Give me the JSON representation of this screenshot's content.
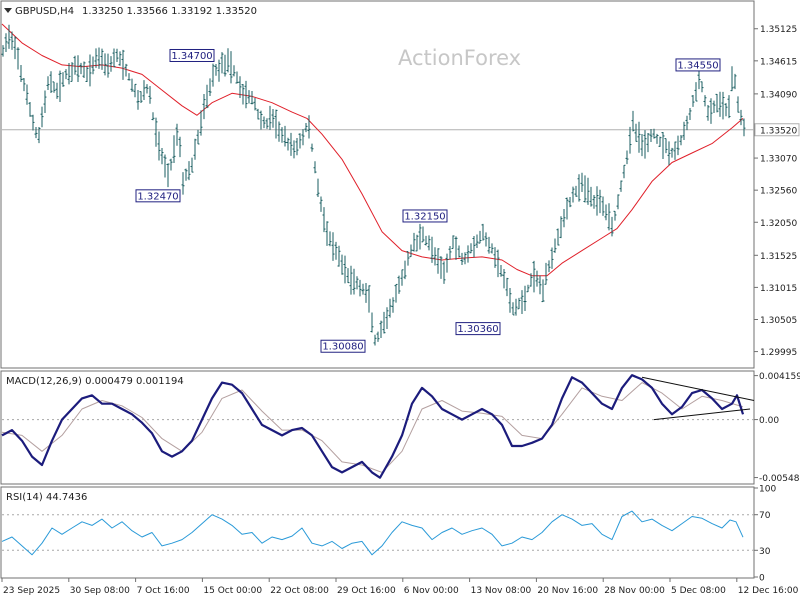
{
  "watermark": "ActionForex",
  "colors": {
    "bar": "#1a5e60",
    "ma": "#e0202a",
    "macd": "#1c1c7c",
    "signal": "#b4a0a0",
    "rsi": "#2a9ad8",
    "frame": "#707070",
    "label_border": "#202080",
    "label_text": "#202080",
    "trend": "#101010"
  },
  "chart_data": [
    {
      "type": "ohlc",
      "symbol_header": "GBPUSD,H4",
      "ohlc_header": "1.33250 1.33566 1.33192 1.33520",
      "ylim": [
        1.2975,
        1.3555
      ],
      "y_ticks": [
        {
          "value": 1.35125,
          "label": "1.35125"
        },
        {
          "value": 1.34615,
          "label": "1.34615"
        },
        {
          "value": 1.3409,
          "label": "1.34090"
        },
        {
          "value": 1.3307,
          "label": "1.33070"
        },
        {
          "value": 1.3256,
          "label": "1.32560"
        },
        {
          "value": 1.3205,
          "label": "1.32050"
        },
        {
          "value": 1.31525,
          "label": "1.31525"
        },
        {
          "value": 1.31015,
          "label": "1.31015"
        },
        {
          "value": 1.30505,
          "label": "1.30505"
        },
        {
          "value": 1.29995,
          "label": "1.29995"
        }
      ],
      "current_price": {
        "value": 1.3352,
        "label": "1.33520"
      },
      "x_labels": [
        "23 Sep 2025",
        "30 Sep 08:00",
        "7 Oct 16:00",
        "15 Oct 00:00",
        "22 Oct 08:00",
        "29 Oct 16:00",
        "6 Nov 00:00",
        "13 Nov 08:00",
        "20 Nov 16:00",
        "28 Nov 00:00",
        "5 Dec 08:00",
        "12 Dec 16:00"
      ],
      "price_path": [
        [
          0,
          1.3475
        ],
        [
          5,
          1.3505
        ],
        [
          15,
          1.3465
        ],
        [
          25,
          1.3395
        ],
        [
          35,
          1.3335
        ],
        [
          45,
          1.3425
        ],
        [
          55,
          1.3415
        ],
        [
          65,
          1.3445
        ],
        [
          75,
          1.345
        ],
        [
          85,
          1.344
        ],
        [
          95,
          1.347
        ],
        [
          105,
          1.3455
        ],
        [
          115,
          1.347
        ],
        [
          125,
          1.344
        ],
        [
          135,
          1.34
        ],
        [
          145,
          1.342
        ],
        [
          155,
          1.333
        ],
        [
          165,
          1.328
        ],
        [
          170,
          1.331
        ],
        [
          175,
          1.336
        ],
        [
          180,
          1.327
        ],
        [
          190,
          1.33
        ],
        [
          200,
          1.338
        ],
        [
          210,
          1.344
        ],
        [
          220,
          1.346
        ],
        [
          230,
          1.345
        ],
        [
          240,
          1.341
        ],
        [
          250,
          1.34
        ],
        [
          260,
          1.336
        ],
        [
          270,
          1.337
        ],
        [
          280,
          1.334
        ],
        [
          290,
          1.332
        ],
        [
          300,
          1.334
        ],
        [
          305,
          1.3365
        ],
        [
          315,
          1.326
        ],
        [
          325,
          1.318
        ],
        [
          335,
          1.315
        ],
        [
          345,
          1.312
        ],
        [
          355,
          1.3105
        ],
        [
          365,
          1.309
        ],
        [
          372,
          1.3015
        ],
        [
          380,
          1.3035
        ],
        [
          390,
          1.3075
        ],
        [
          400,
          1.312
        ],
        [
          410,
          1.317
        ],
        [
          420,
          1.3185
        ],
        [
          430,
          1.316
        ],
        [
          440,
          1.312
        ],
        [
          450,
          1.3175
        ],
        [
          460,
          1.3145
        ],
        [
          470,
          1.317
        ],
        [
          480,
          1.3185
        ],
        [
          490,
          1.316
        ],
        [
          500,
          1.312
        ],
        [
          510,
          1.3065
        ],
        [
          520,
          1.308
        ],
        [
          530,
          1.312
        ],
        [
          540,
          1.31
        ],
        [
          550,
          1.316
        ],
        [
          560,
          1.321
        ],
        [
          570,
          1.325
        ],
        [
          580,
          1.3265
        ],
        [
          590,
          1.324
        ],
        [
          600,
          1.3235
        ],
        [
          610,
          1.32
        ],
        [
          620,
          1.328
        ],
        [
          630,
          1.336
        ],
        [
          640,
          1.3325
        ],
        [
          650,
          1.3345
        ],
        [
          660,
          1.333
        ],
        [
          670,
          1.3315
        ],
        [
          680,
          1.334
        ],
        [
          690,
          1.3395
        ],
        [
          697,
          1.3435
        ],
        [
          705,
          1.3375
        ],
        [
          715,
          1.3395
        ],
        [
          725,
          1.338
        ],
        [
          730,
          1.3445
        ],
        [
          736,
          1.3385
        ],
        [
          741,
          1.3352
        ]
      ],
      "ma_path": [
        [
          0,
          1.352
        ],
        [
          20,
          1.349
        ],
        [
          40,
          1.347
        ],
        [
          60,
          1.3455
        ],
        [
          80,
          1.3452
        ],
        [
          100,
          1.3455
        ],
        [
          120,
          1.345
        ],
        [
          140,
          1.344
        ],
        [
          160,
          1.3415
        ],
        [
          180,
          1.339
        ],
        [
          195,
          1.3375
        ],
        [
          210,
          1.3395
        ],
        [
          230,
          1.341
        ],
        [
          250,
          1.3405
        ],
        [
          270,
          1.3395
        ],
        [
          290,
          1.338
        ],
        [
          305,
          1.337
        ],
        [
          320,
          1.3345
        ],
        [
          340,
          1.3305
        ],
        [
          360,
          1.325
        ],
        [
          380,
          1.319
        ],
        [
          400,
          1.316
        ],
        [
          420,
          1.315
        ],
        [
          440,
          1.3145
        ],
        [
          460,
          1.3148
        ],
        [
          480,
          1.315
        ],
        [
          500,
          1.3145
        ],
        [
          515,
          1.313
        ],
        [
          530,
          1.312
        ],
        [
          545,
          1.312
        ],
        [
          560,
          1.314
        ],
        [
          580,
          1.316
        ],
        [
          600,
          1.318
        ],
        [
          615,
          1.3195
        ],
        [
          630,
          1.3225
        ],
        [
          650,
          1.327
        ],
        [
          670,
          1.33
        ],
        [
          690,
          1.3315
        ],
        [
          710,
          1.333
        ],
        [
          730,
          1.3355
        ],
        [
          741,
          1.337
        ]
      ],
      "labels": [
        {
          "text": "1.34700",
          "x": 192,
          "y": 1.347
        },
        {
          "text": "1.32470",
          "x": 158,
          "y": 1.3247
        },
        {
          "text": "1.32150",
          "x": 425,
          "y": 1.3215
        },
        {
          "text": "1.30080",
          "x": 343,
          "y": 1.3008
        },
        {
          "text": "1.30360",
          "x": 478,
          "y": 1.3036
        },
        {
          "text": "1.34550",
          "x": 698,
          "y": 1.3455
        }
      ]
    },
    {
      "type": "line",
      "indicator": "MACD(12,26,9) 0.000479 0.001194",
      "ylim": [
        -0.006,
        0.0045
      ],
      "y_ticks": [
        {
          "value": 0.004159,
          "label": "0.004159"
        },
        {
          "value": 0.0,
          "label": "0.00"
        },
        {
          "value": -0.005485,
          "label": "-0.005485"
        }
      ],
      "macd_path": [
        [
          0,
          -0.0015
        ],
        [
          10,
          -0.001
        ],
        [
          20,
          -0.002
        ],
        [
          30,
          -0.0035
        ],
        [
          40,
          -0.0043
        ],
        [
          50,
          -0.002
        ],
        [
          60,
          0.0
        ],
        [
          70,
          0.001
        ],
        [
          80,
          0.002
        ],
        [
          90,
          0.0023
        ],
        [
          100,
          0.0015
        ],
        [
          110,
          0.0015
        ],
        [
          120,
          0.001
        ],
        [
          130,
          0.0005
        ],
        [
          140,
          -0.0003
        ],
        [
          150,
          -0.0013
        ],
        [
          160,
          -0.003
        ],
        [
          170,
          -0.0035
        ],
        [
          180,
          -0.003
        ],
        [
          190,
          -0.002
        ],
        [
          200,
          0.0
        ],
        [
          210,
          0.002
        ],
        [
          220,
          0.0035
        ],
        [
          230,
          0.0033
        ],
        [
          240,
          0.0025
        ],
        [
          250,
          0.001
        ],
        [
          260,
          -0.0005
        ],
        [
          270,
          -0.001
        ],
        [
          280,
          -0.0015
        ],
        [
          290,
          -0.001
        ],
        [
          300,
          -0.0008
        ],
        [
          310,
          -0.0015
        ],
        [
          320,
          -0.003
        ],
        [
          330,
          -0.0045
        ],
        [
          340,
          -0.005
        ],
        [
          350,
          -0.0045
        ],
        [
          360,
          -0.004
        ],
        [
          370,
          -0.005
        ],
        [
          378,
          -0.0055
        ],
        [
          390,
          -0.0035
        ],
        [
          400,
          -0.0015
        ],
        [
          410,
          0.0015
        ],
        [
          420,
          0.003
        ],
        [
          430,
          0.0022
        ],
        [
          440,
          0.001
        ],
        [
          450,
          0.0005
        ],
        [
          460,
          0.0
        ],
        [
          470,
          0.0005
        ],
        [
          480,
          0.001
        ],
        [
          490,
          0.0005
        ],
        [
          500,
          -0.0005
        ],
        [
          510,
          -0.0025
        ],
        [
          520,
          -0.0025
        ],
        [
          530,
          -0.0022
        ],
        [
          540,
          -0.0018
        ],
        [
          550,
          -0.0005
        ],
        [
          560,
          0.002
        ],
        [
          570,
          0.004
        ],
        [
          580,
          0.0035
        ],
        [
          590,
          0.0025
        ],
        [
          600,
          0.0015
        ],
        [
          610,
          0.001
        ],
        [
          620,
          0.003
        ],
        [
          630,
          0.0042
        ],
        [
          640,
          0.0038
        ],
        [
          650,
          0.003
        ],
        [
          660,
          0.0015
        ],
        [
          670,
          0.0005
        ],
        [
          680,
          0.0012
        ],
        [
          690,
          0.0025
        ],
        [
          700,
          0.0028
        ],
        [
          710,
          0.002
        ],
        [
          720,
          0.001
        ],
        [
          730,
          0.0015
        ],
        [
          735,
          0.0023
        ],
        [
          741,
          0.0005
        ]
      ],
      "signal_path": [
        [
          0,
          -0.0012
        ],
        [
          20,
          -0.0015
        ],
        [
          40,
          -0.003
        ],
        [
          60,
          -0.0015
        ],
        [
          80,
          0.001
        ],
        [
          100,
          0.0018
        ],
        [
          120,
          0.0013
        ],
        [
          140,
          0.0002
        ],
        [
          160,
          -0.0018
        ],
        [
          180,
          -0.003
        ],
        [
          200,
          -0.0012
        ],
        [
          220,
          0.002
        ],
        [
          240,
          0.0028
        ],
        [
          260,
          0.0008
        ],
        [
          280,
          -0.001
        ],
        [
          300,
          -0.001
        ],
        [
          320,
          -0.002
        ],
        [
          340,
          -0.004
        ],
        [
          360,
          -0.0043
        ],
        [
          380,
          -0.005
        ],
        [
          400,
          -0.003
        ],
        [
          420,
          0.001
        ],
        [
          440,
          0.0018
        ],
        [
          460,
          0.0008
        ],
        [
          480,
          0.0006
        ],
        [
          500,
          0.0003
        ],
        [
          520,
          -0.0015
        ],
        [
          540,
          -0.0018
        ],
        [
          560,
          0.0005
        ],
        [
          580,
          0.003
        ],
        [
          600,
          0.0022
        ],
        [
          620,
          0.0018
        ],
        [
          640,
          0.0035
        ],
        [
          660,
          0.0025
        ],
        [
          680,
          0.001
        ],
        [
          700,
          0.0022
        ],
        [
          720,
          0.0018
        ],
        [
          741,
          0.0012
        ]
      ],
      "trendlines": [
        [
          [
            640,
            0.004
          ],
          [
            752,
            0.0018
          ]
        ],
        [
          [
            652,
            0.0
          ],
          [
            748,
            0.001
          ]
        ]
      ]
    },
    {
      "type": "line",
      "indicator": "RSI(14) 44.7436",
      "ylim": [
        0,
        100
      ],
      "y_ticks": [
        {
          "value": 100,
          "label": "100"
        },
        {
          "value": 70,
          "label": "70"
        },
        {
          "value": 30,
          "label": "30"
        },
        {
          "value": 0,
          "label": "0"
        }
      ],
      "rsi_path": [
        [
          0,
          40
        ],
        [
          10,
          45
        ],
        [
          20,
          35
        ],
        [
          30,
          25
        ],
        [
          40,
          38
        ],
        [
          50,
          55
        ],
        [
          60,
          48
        ],
        [
          70,
          55
        ],
        [
          80,
          62
        ],
        [
          90,
          58
        ],
        [
          100,
          65
        ],
        [
          110,
          55
        ],
        [
          120,
          62
        ],
        [
          130,
          52
        ],
        [
          140,
          45
        ],
        [
          150,
          50
        ],
        [
          160,
          35
        ],
        [
          170,
          38
        ],
        [
          180,
          42
        ],
        [
          190,
          50
        ],
        [
          200,
          60
        ],
        [
          210,
          70
        ],
        [
          220,
          65
        ],
        [
          230,
          58
        ],
        [
          240,
          48
        ],
        [
          250,
          50
        ],
        [
          260,
          38
        ],
        [
          270,
          45
        ],
        [
          280,
          42
        ],
        [
          290,
          46
        ],
        [
          300,
          55
        ],
        [
          310,
          38
        ],
        [
          320,
          35
        ],
        [
          330,
          40
        ],
        [
          340,
          32
        ],
        [
          350,
          38
        ],
        [
          360,
          40
        ],
        [
          370,
          25
        ],
        [
          380,
          35
        ],
        [
          390,
          50
        ],
        [
          400,
          62
        ],
        [
          410,
          58
        ],
        [
          420,
          55
        ],
        [
          430,
          42
        ],
        [
          440,
          50
        ],
        [
          450,
          55
        ],
        [
          460,
          48
        ],
        [
          470,
          52
        ],
        [
          480,
          55
        ],
        [
          490,
          48
        ],
        [
          500,
          35
        ],
        [
          510,
          38
        ],
        [
          520,
          45
        ],
        [
          530,
          42
        ],
        [
          540,
          50
        ],
        [
          550,
          62
        ],
        [
          560,
          70
        ],
        [
          570,
          65
        ],
        [
          580,
          58
        ],
        [
          590,
          60
        ],
        [
          600,
          48
        ],
        [
          610,
          42
        ],
        [
          620,
          68
        ],
        [
          630,
          74
        ],
        [
          640,
          62
        ],
        [
          650,
          65
        ],
        [
          660,
          58
        ],
        [
          670,
          52
        ],
        [
          680,
          60
        ],
        [
          690,
          68
        ],
        [
          700,
          66
        ],
        [
          710,
          60
        ],
        [
          720,
          55
        ],
        [
          728,
          64
        ],
        [
          734,
          62
        ],
        [
          741,
          44.7
        ]
      ]
    }
  ]
}
